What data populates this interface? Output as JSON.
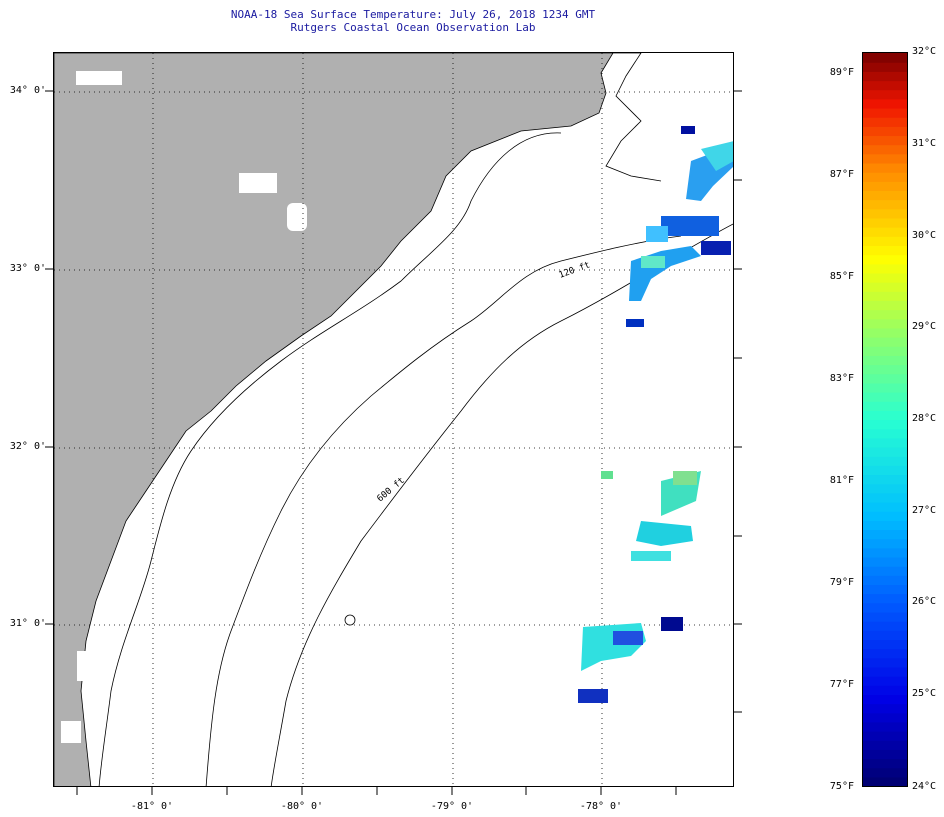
{
  "header": {
    "title": "NOAA-18 Sea Surface Temperature:  July 26, 2018 1234 GMT",
    "subtitle": "Rutgers Coastal Ocean Observation Lab"
  },
  "map": {
    "lat_labels": [
      "34° 0'",
      "33° 0'",
      "32° 0'",
      "31° 0'"
    ],
    "lon_labels": [
      "-81° 0'",
      "-80° 0'",
      "-79° 0'",
      "-78° 0'"
    ],
    "lon_range": [
      -81.65,
      -77.15
    ],
    "lat_range": [
      30.1,
      34.2
    ],
    "contour_labels": [
      "120 ft",
      "600 ft"
    ],
    "colors": {
      "land": "#b0b0b0",
      "water": "#ffffff",
      "coast": "#000000",
      "grid": "#000000"
    }
  },
  "colorbar": {
    "min_c": 24,
    "max_c": 32,
    "celsius_labels": [
      "32°C",
      "31°C",
      "30°C",
      "29°C",
      "28°C",
      "27°C",
      "26°C",
      "25°C",
      "24°C"
    ],
    "fahrenheit_labels": [
      "89°F",
      "87°F",
      "85°F",
      "83°F",
      "81°F",
      "79°F",
      "77°F",
      "75°F"
    ]
  },
  "chart_data": {
    "type": "heatmap",
    "title": "NOAA-18 Sea Surface Temperature:  July 26, 2018 1234 GMT",
    "subtitle": "Rutgers Coastal Ocean Observation Lab",
    "xlabel": "",
    "ylabel": "",
    "x_ticks": [
      "-81° 0'",
      "-80° 0'",
      "-79° 0'",
      "-78° 0'"
    ],
    "y_ticks": [
      "34° 0'",
      "33° 0'",
      "32° 0'",
      "31° 0'"
    ],
    "color_scale": {
      "unit": "°C",
      "min": 24,
      "max": 32,
      "secondary_unit": "°F",
      "secondary_min": 75,
      "secondary_max": 89
    },
    "grid": true
  }
}
